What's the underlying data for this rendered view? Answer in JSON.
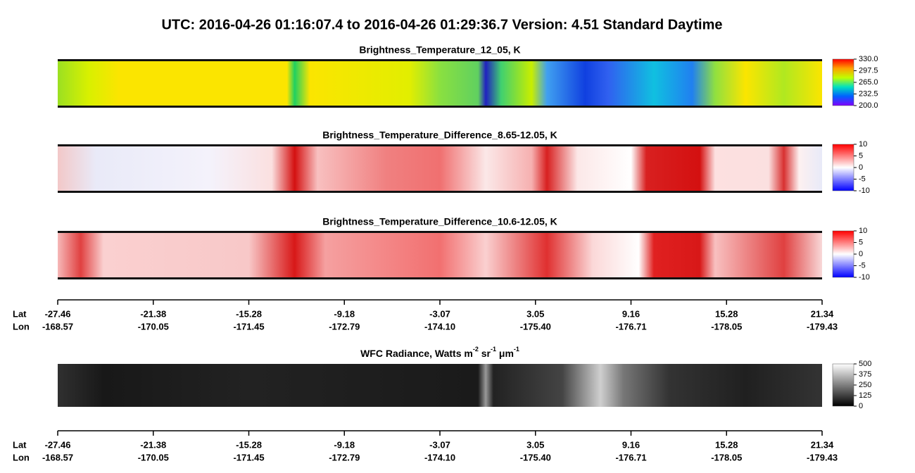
{
  "header": {
    "title": "UTC:  2016-04-26   01:16:07.4  to  2016-04-26   01:29:36.7    Version: 4.51  Standard Daytime"
  },
  "panels": [
    {
      "title": "Brightness_Temperature_12_05, K",
      "colorbar_ticks": [
        "330.0",
        "297.5",
        "265.0",
        "232.5",
        "200.0"
      ]
    },
    {
      "title": "Brightness_Temperature_Difference_8.65-12.05, K",
      "colorbar_ticks": [
        "10",
        "5",
        "0",
        "-5",
        "-10"
      ]
    },
    {
      "title": "Brightness_Temperature_Difference_10.6-12.05, K",
      "colorbar_ticks": [
        "10",
        "5",
        "0",
        "-5",
        "-10"
      ]
    }
  ],
  "wfc": {
    "title_parts": [
      "WFC Radiance, Watts m",
      "-2",
      " sr",
      "-1",
      " μm",
      "-1"
    ],
    "colorbar_ticks": [
      "500",
      "375",
      "250",
      "125",
      "0"
    ]
  },
  "axis": {
    "lat_label": "Lat",
    "lon_label": "Lon",
    "lat": [
      "-27.46",
      "-21.38",
      "-15.28",
      "-9.18",
      "-3.07",
      "3.05",
      "9.16",
      "15.28",
      "21.34"
    ],
    "lon": [
      "-168.57",
      "-170.05",
      "-171.45",
      "-172.79",
      "-174.10",
      "-175.40",
      "-176.71",
      "-178.05",
      "-179.43"
    ]
  }
}
